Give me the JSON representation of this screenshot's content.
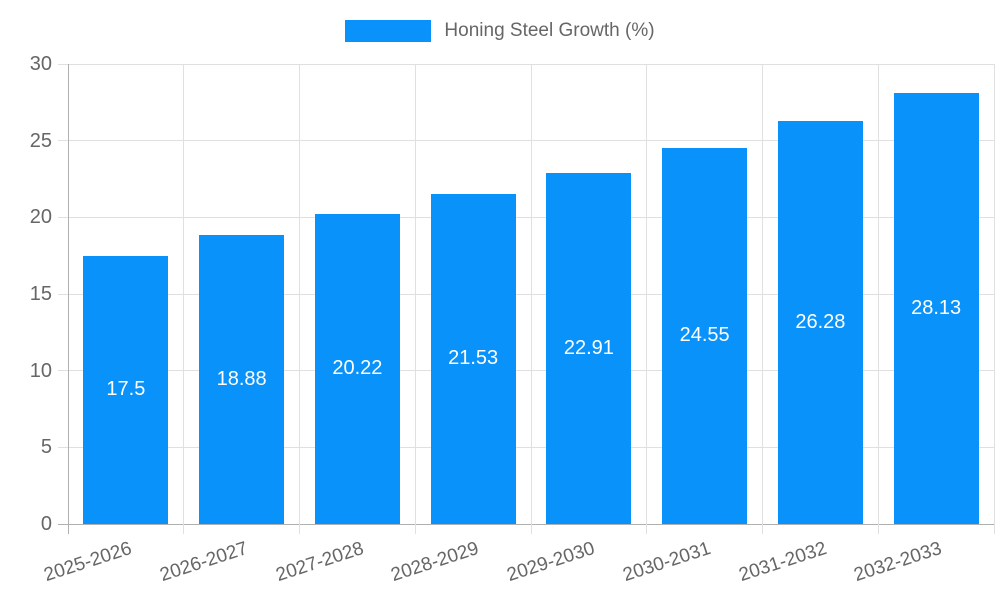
{
  "chart_data": {
    "type": "bar",
    "title": "",
    "legend_label": "Honing Steel Growth (%)",
    "legend_position": "top",
    "categories": [
      "2025-2026",
      "2026-2027",
      "2027-2028",
      "2028-2029",
      "2029-2030",
      "2030-2031",
      "2031-2032",
      "2032-2033"
    ],
    "values": [
      17.5,
      18.88,
      20.22,
      21.53,
      22.91,
      24.55,
      26.28,
      28.13
    ],
    "value_labels": [
      "17.5",
      "18.88",
      "20.22",
      "21.53",
      "22.91",
      "24.55",
      "26.28",
      "28.13"
    ],
    "xlabel": "",
    "ylabel": "",
    "ylim": [
      0,
      30
    ],
    "yticks": [
      0,
      5,
      10,
      15,
      20,
      25,
      30
    ],
    "grid": true,
    "colors": {
      "bar": "#0992fa",
      "grid": "#e0e0e0",
      "axis": "#b0b0b0",
      "tick_text": "#666666",
      "bar_label": "#ffffff",
      "background": "#ffffff"
    }
  }
}
